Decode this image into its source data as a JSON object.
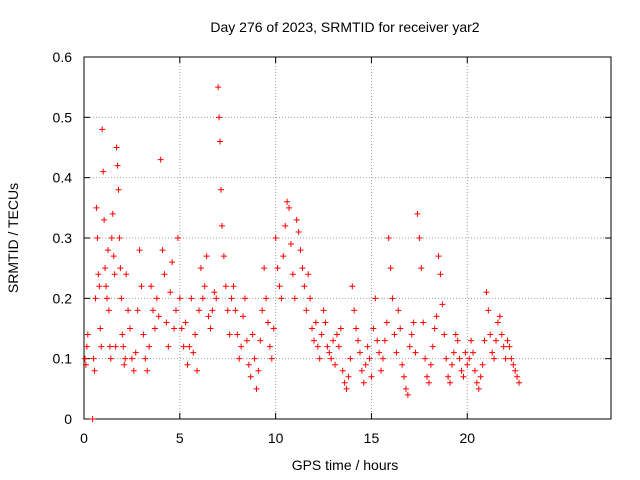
{
  "chart_data": {
    "type": "scatter",
    "title": "Day 276 of 2023, SRMTID for receiver yar2",
    "xlabel": "GPS time / hours",
    "ylabel": "SRMTID / TECUs",
    "xlim": [
      0,
      27.5
    ],
    "ylim": [
      0,
      0.6
    ],
    "x_ticks": [
      0,
      5,
      10,
      15,
      20
    ],
    "x_tick_labels": [
      "0",
      "5",
      "10",
      "15",
      "20"
    ],
    "y_ticks": [
      0,
      0.1,
      0.2,
      0.3,
      0.4,
      0.5,
      0.6
    ],
    "y_tick_labels": [
      "0",
      "0.1",
      "0.2",
      "0.3",
      "0.4",
      "0.5",
      "0.6"
    ],
    "grid": true,
    "marker": "plus",
    "color": "#ff0000",
    "series": [
      {
        "name": "SRMTID",
        "x": [
          0.05,
          0.1,
          0.15,
          0.2,
          0.45,
          0.5,
          0.55,
          0.6,
          0.65,
          0.7,
          0.75,
          0.8,
          0.85,
          0.9,
          0.95,
          1.0,
          1.05,
          1.1,
          1.15,
          1.2,
          1.25,
          1.3,
          1.35,
          1.4,
          1.45,
          1.5,
          1.55,
          1.6,
          1.65,
          1.7,
          1.75,
          1.8,
          1.85,
          1.9,
          1.95,
          2.0,
          2.05,
          2.1,
          2.15,
          2.2,
          2.3,
          2.4,
          2.5,
          2.6,
          2.7,
          2.8,
          2.9,
          3.0,
          3.1,
          3.2,
          3.3,
          3.4,
          3.5,
          3.6,
          3.7,
          3.8,
          3.9,
          4.0,
          4.1,
          4.2,
          4.3,
          4.4,
          4.5,
          4.6,
          4.7,
          4.8,
          4.9,
          5.0,
          5.1,
          5.2,
          5.3,
          5.4,
          5.5,
          5.6,
          5.7,
          5.8,
          5.9,
          6.0,
          6.1,
          6.2,
          6.3,
          6.4,
          6.5,
          6.6,
          6.7,
          6.8,
          6.9,
          7.0,
          7.05,
          7.1,
          7.15,
          7.2,
          7.3,
          7.4,
          7.5,
          7.6,
          7.7,
          7.8,
          7.9,
          8.0,
          8.1,
          8.2,
          8.3,
          8.4,
          8.5,
          8.6,
          8.7,
          8.8,
          8.9,
          9.0,
          9.1,
          9.2,
          9.3,
          9.4,
          9.5,
          9.6,
          9.7,
          9.8,
          9.9,
          10.0,
          10.1,
          10.2,
          10.3,
          10.4,
          10.5,
          10.6,
          10.7,
          10.8,
          10.9,
          11.0,
          11.1,
          11.2,
          11.3,
          11.4,
          11.5,
          11.6,
          11.7,
          11.8,
          11.9,
          12.0,
          12.1,
          12.2,
          12.3,
          12.4,
          12.5,
          12.6,
          12.7,
          12.8,
          12.9,
          13.0,
          13.1,
          13.2,
          13.3,
          13.4,
          13.5,
          13.6,
          13.7,
          13.8,
          13.9,
          14.0,
          14.1,
          14.2,
          14.3,
          14.4,
          14.5,
          14.6,
          14.7,
          14.8,
          14.9,
          15.0,
          15.1,
          15.2,
          15.3,
          15.4,
          15.5,
          15.6,
          15.7,
          15.8,
          15.9,
          16.0,
          16.1,
          16.2,
          16.3,
          16.4,
          16.5,
          16.6,
          16.7,
          16.8,
          16.9,
          17.0,
          17.1,
          17.2,
          17.3,
          17.4,
          17.5,
          17.6,
          17.7,
          17.8,
          17.9,
          18.0,
          18.1,
          18.2,
          18.3,
          18.4,
          18.5,
          18.6,
          18.7,
          18.8,
          18.9,
          19.0,
          19.1,
          19.2,
          19.3,
          19.4,
          19.5,
          19.6,
          19.7,
          19.8,
          19.9,
          20.0,
          20.1,
          20.2,
          20.3,
          20.4,
          20.5,
          20.6,
          20.7,
          20.8,
          20.9,
          21.0,
          21.1,
          21.2,
          21.3,
          21.4,
          21.5,
          21.6,
          21.7,
          21.8,
          21.9,
          22.0,
          22.1,
          22.2,
          22.3,
          22.4,
          22.5,
          22.6,
          22.7
        ],
        "y": [
          0.1,
          0.09,
          0.12,
          0.14,
          0.0,
          0.1,
          0.08,
          0.2,
          0.35,
          0.3,
          0.24,
          0.22,
          0.15,
          0.12,
          0.48,
          0.41,
          0.33,
          0.25,
          0.22,
          0.2,
          0.28,
          0.18,
          0.12,
          0.1,
          0.3,
          0.34,
          0.27,
          0.24,
          0.12,
          0.45,
          0.42,
          0.38,
          0.3,
          0.25,
          0.2,
          0.14,
          0.12,
          0.09,
          0.1,
          0.24,
          0.18,
          0.15,
          0.1,
          0.08,
          0.11,
          0.18,
          0.28,
          0.22,
          0.14,
          0.1,
          0.08,
          0.12,
          0.22,
          0.18,
          0.15,
          0.2,
          0.17,
          0.43,
          0.28,
          0.24,
          0.16,
          0.12,
          0.21,
          0.26,
          0.15,
          0.18,
          0.3,
          0.2,
          0.15,
          0.12,
          0.16,
          0.09,
          0.12,
          0.2,
          0.11,
          0.14,
          0.08,
          0.18,
          0.25,
          0.2,
          0.22,
          0.27,
          0.17,
          0.15,
          0.18,
          0.21,
          0.2,
          0.55,
          0.5,
          0.46,
          0.38,
          0.32,
          0.27,
          0.22,
          0.18,
          0.14,
          0.2,
          0.22,
          0.18,
          0.14,
          0.1,
          0.12,
          0.17,
          0.2,
          0.13,
          0.09,
          0.07,
          0.14,
          0.1,
          0.05,
          0.08,
          0.13,
          0.18,
          0.25,
          0.2,
          0.16,
          0.12,
          0.1,
          0.15,
          0.3,
          0.25,
          0.22,
          0.2,
          0.27,
          0.32,
          0.36,
          0.35,
          0.29,
          0.24,
          0.2,
          0.33,
          0.31,
          0.28,
          0.25,
          0.22,
          0.18,
          0.24,
          0.2,
          0.15,
          0.13,
          0.16,
          0.12,
          0.1,
          0.14,
          0.18,
          0.16,
          0.12,
          0.11,
          0.1,
          0.13,
          0.09,
          0.14,
          0.12,
          0.15,
          0.08,
          0.06,
          0.05,
          0.07,
          0.1,
          0.22,
          0.18,
          0.15,
          0.13,
          0.11,
          0.08,
          0.06,
          0.09,
          0.12,
          0.1,
          0.07,
          0.15,
          0.2,
          0.13,
          0.11,
          0.08,
          0.1,
          0.13,
          0.16,
          0.3,
          0.25,
          0.2,
          0.14,
          0.11,
          0.18,
          0.15,
          0.09,
          0.07,
          0.05,
          0.04,
          0.12,
          0.14,
          0.16,
          0.11,
          0.34,
          0.3,
          0.25,
          0.16,
          0.1,
          0.07,
          0.06,
          0.09,
          0.12,
          0.15,
          0.17,
          0.27,
          0.24,
          0.19,
          0.14,
          0.1,
          0.07,
          0.06,
          0.09,
          0.11,
          0.14,
          0.13,
          0.1,
          0.08,
          0.07,
          0.11,
          0.09,
          0.1,
          0.13,
          0.11,
          0.08,
          0.06,
          0.05,
          0.07,
          0.09,
          0.13,
          0.21,
          0.18,
          0.14,
          0.11,
          0.1,
          0.13,
          0.16,
          0.17,
          0.14,
          0.12,
          0.1,
          0.13,
          0.12,
          0.1,
          0.09,
          0.08,
          0.07,
          0.06
        ]
      }
    ]
  }
}
